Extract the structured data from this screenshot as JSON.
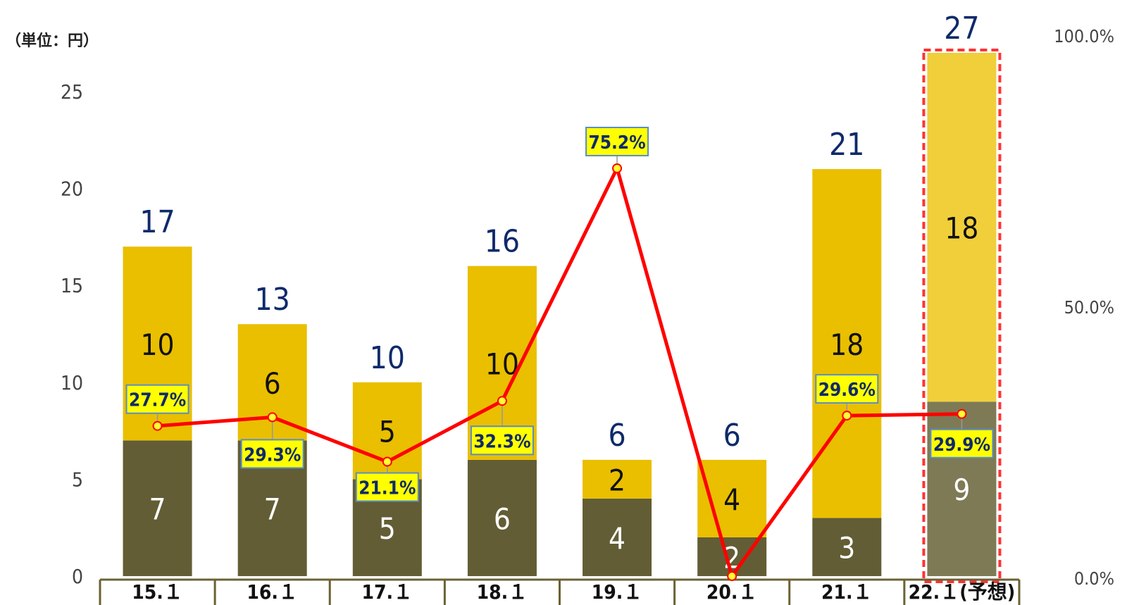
{
  "unit_label": "（単位：円）",
  "colors": {
    "bottom_bar": "#625D35",
    "bottom_bar_forecast": "#7D7A55",
    "top_bar": "#E9BF00",
    "top_bar_forecast": "#F0CF3A",
    "line": "#FF0000",
    "line_marker_fill": "#FFFF33",
    "total_label": "#0F2A6B",
    "forecast_border": "#FF3333",
    "axis_frame": "#6B6233",
    "pct_box_fill": "#FFFF00",
    "pct_box_border": "#5B8CC8"
  },
  "chart_data": {
    "type": "bar",
    "stacked": true,
    "categories": [
      "15.１",
      "16.１",
      "17.１",
      "18.１",
      "19.１",
      "20.１",
      "21.１",
      "22.１(予想)"
    ],
    "series": [
      {
        "values": [
          7,
          7,
          5,
          6,
          4,
          2,
          3,
          9
        ]
      },
      {
        "values": [
          10,
          6,
          5,
          10,
          2,
          4,
          18,
          18
        ]
      }
    ],
    "totals": [
      17,
      13,
      10,
      16,
      6,
      6,
      21,
      27
    ],
    "line_series": {
      "axis": "right",
      "values": [
        27.7,
        29.3,
        21.1,
        32.3,
        75.2,
        0.0,
        29.6,
        29.9
      ],
      "labels": [
        "27.7%",
        "29.3%",
        "21.1%",
        "32.3%",
        "75.2%",
        "",
        "29.6%",
        "29.9%"
      ]
    },
    "ylim": [
      0,
      25
    ],
    "yticks": [
      "0",
      "5",
      "10",
      "15",
      "20",
      "25"
    ],
    "y2lim": [
      0,
      100
    ],
    "y2ticks": [
      "0.0%",
      "50.0%",
      "100.0%"
    ],
    "forecast_index": 7,
    "legend": "none",
    "grid": false
  }
}
